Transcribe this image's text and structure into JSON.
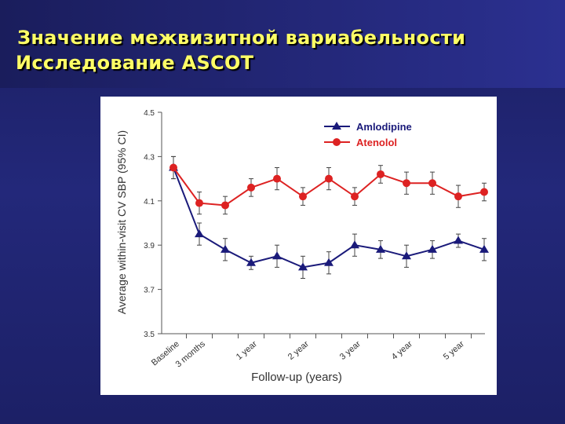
{
  "slide": {
    "title_line1": "Значение межвизитной вариабельности",
    "title_line2": "Исследование ASCOT",
    "colors": {
      "title_text": "#ffff66",
      "background": "#1f2370"
    }
  },
  "chart_data": {
    "type": "line",
    "categories": [
      "Baseline",
      "3 months",
      "",
      "1 year",
      "",
      "2 year",
      "",
      "3 year",
      "",
      "4 year",
      "",
      "5 year",
      ""
    ],
    "xlabel": "Follow-up  (years)",
    "ylabel": "Average within-visit CV SBP (95%  CI)",
    "ylim": [
      3.5,
      4.5
    ],
    "yticks": [
      "3.5",
      "3.7",
      "3.9",
      "4.1",
      "4.3",
      "4.5"
    ],
    "grid": false,
    "legend_position": "top-right",
    "series": [
      {
        "name": "Amlodipine",
        "color": "#1a1a7a",
        "marker": "triangle",
        "values": [
          4.25,
          3.95,
          3.88,
          3.82,
          3.85,
          3.8,
          3.82,
          3.9,
          3.88,
          3.85,
          3.88,
          3.92,
          3.88
        ],
        "err": [
          0.05,
          0.05,
          0.05,
          0.03,
          0.05,
          0.05,
          0.05,
          0.05,
          0.04,
          0.05,
          0.04,
          0.03,
          0.05
        ]
      },
      {
        "name": "Atenolol",
        "color": "#dd2222",
        "marker": "circle",
        "values": [
          4.25,
          4.09,
          4.08,
          4.16,
          4.2,
          4.12,
          4.2,
          4.12,
          4.22,
          4.18,
          4.18,
          4.12,
          4.14
        ],
        "err": [
          0.05,
          0.05,
          0.04,
          0.04,
          0.05,
          0.04,
          0.05,
          0.04,
          0.04,
          0.05,
          0.05,
          0.05,
          0.04
        ]
      }
    ]
  }
}
